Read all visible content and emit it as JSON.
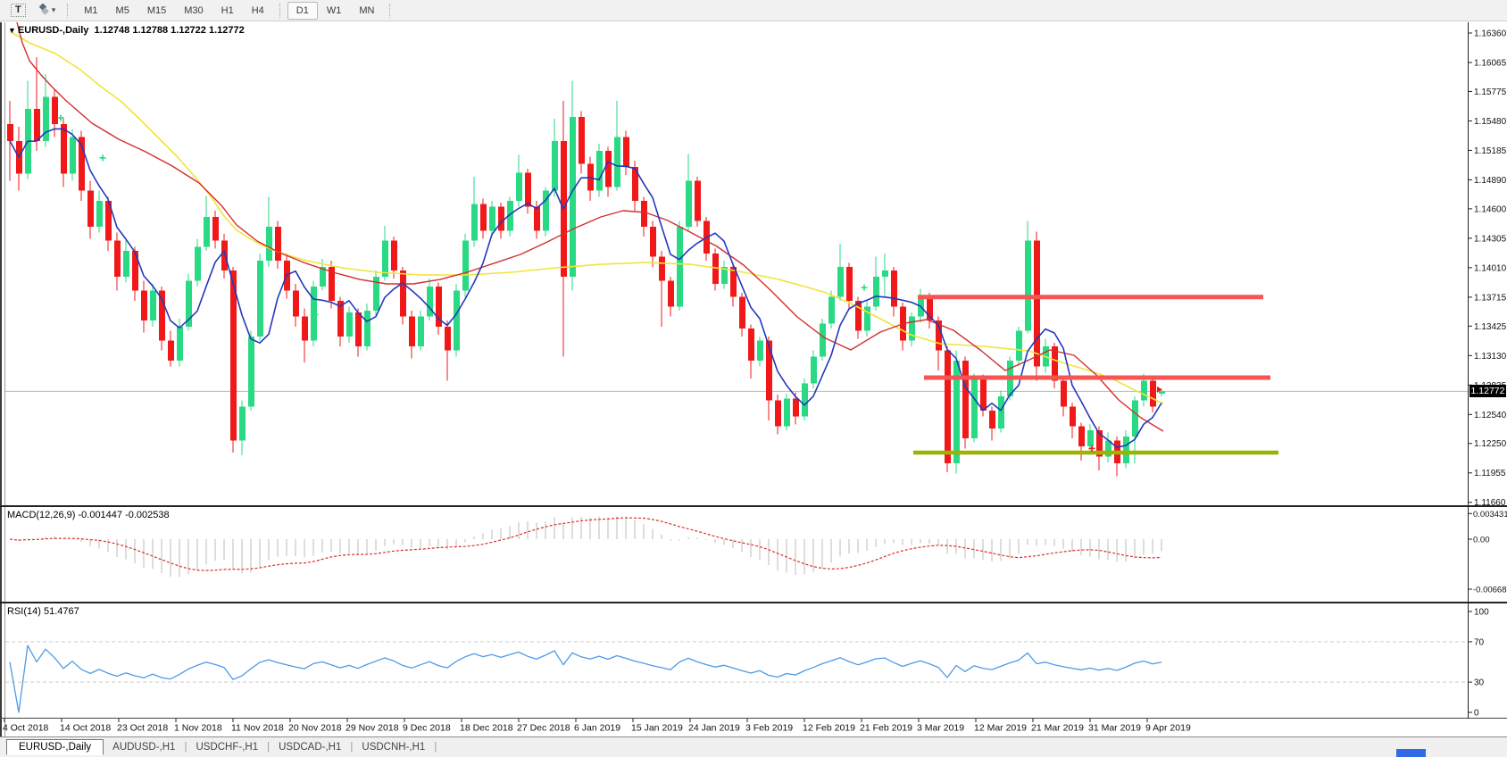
{
  "toolbar": {
    "text_tool_label": "T",
    "icons": [
      "text-tool-icon",
      "objects-icon",
      "dropdown-caret-icon"
    ],
    "timeframe_groups": [
      [
        "M1",
        "M5",
        "M15",
        "M30",
        "H1",
        "H4"
      ],
      [
        "D1",
        "W1",
        "MN"
      ]
    ],
    "active_timeframe": "D1"
  },
  "chart": {
    "title_symbol": "EURUSD-,Daily",
    "title_ohlc": "1.12748 1.12788 1.12722 1.12772",
    "current_price_label": "1.12772"
  },
  "indicators": {
    "macd": {
      "label": "MACD(12,26,9)",
      "values": "-0.001447 -0.002538",
      "axis_ticks": [
        "0.003431",
        "0.00",
        "-0.006686"
      ]
    },
    "rsi": {
      "label": "RSI(14)",
      "value": "51.4767",
      "axis_ticks": [
        "100",
        "70",
        "30",
        "0"
      ],
      "levels": [
        70,
        30
      ]
    }
  },
  "tabs": {
    "active": "EURUSD-,Daily",
    "inactive": [
      "AUDUSD-,H1",
      "USDCHF-,H1",
      "USDCAD-,H1",
      "USDCNH-,H1"
    ],
    "divider": "|"
  },
  "colors": {
    "bull": "#29d984",
    "bear": "#f01818",
    "ma_fast_blue": "#2438bb",
    "ma_medium_red": "#d22f2f",
    "ma_slow_yellow": "#f0e43c",
    "hline_red": "#f75454",
    "hline_olive": "#9db302",
    "rsi_line": "#4d9be6",
    "macd_hist": "#bbbbbb",
    "macd_signal": "#d93025",
    "price_line": "#b6b6b6",
    "level_dash": "#cdcdcd",
    "tag_bg": "#000000",
    "accent_blue": "#2f6be4"
  },
  "chart_data": {
    "type": "candlestick",
    "symbol": "EURUSD-",
    "timeframe": "Daily",
    "title": "EURUSD-,Daily",
    "last_ohlc": {
      "open": 1.12748,
      "high": 1.12788,
      "low": 1.12722,
      "close": 1.12772
    },
    "current_price": 1.12772,
    "y_axis_ticks": [
      "1.16360",
      "1.16065",
      "1.15775",
      "1.15480",
      "1.15185",
      "1.14890",
      "1.14600",
      "1.14305",
      "1.14010",
      "1.13715",
      "1.13425",
      "1.13130",
      "1.12835",
      "1.12540",
      "1.12250",
      "1.11955",
      "1.11660"
    ],
    "x_axis_labels": [
      "4 Oct 2018",
      "14 Oct 2018",
      "23 Oct 2018",
      "1 Nov 2018",
      "11 Nov 2018",
      "20 Nov 2018",
      "29 Nov 2018",
      "9 Dec 2018",
      "18 Dec 2018",
      "27 Dec 2018",
      "6 Jan 2019",
      "15 Jan 2019",
      "24 Jan 2019",
      "3 Feb 2019",
      "12 Feb 2019",
      "21 Feb 2019",
      "3 Mar 2019",
      "12 Mar 2019",
      "21 Mar 2019",
      "31 Mar 2019",
      "9 Apr 2019"
    ],
    "candles_ohlc": [
      [
        1.1545,
        1.1568,
        1.1488,
        1.1528
      ],
      [
        1.1528,
        1.1542,
        1.1478,
        1.1495
      ],
      [
        1.1495,
        1.1588,
        1.149,
        1.156
      ],
      [
        1.156,
        1.1612,
        1.1518,
        1.1528
      ],
      [
        1.1528,
        1.1595,
        1.1522,
        1.1572
      ],
      [
        1.1572,
        1.158,
        1.1532,
        1.1545
      ],
      [
        1.1545,
        1.1552,
        1.1482,
        1.1495
      ],
      [
        1.1495,
        1.154,
        1.1488,
        1.1532
      ],
      [
        1.1532,
        1.1538,
        1.1468,
        1.1478
      ],
      [
        1.1478,
        1.1488,
        1.143,
        1.1442
      ],
      [
        1.1442,
        1.1478,
        1.1436,
        1.1468
      ],
      [
        1.1468,
        1.1472,
        1.1418,
        1.1428
      ],
      [
        1.1428,
        1.1436,
        1.1378,
        1.1392
      ],
      [
        1.1392,
        1.1428,
        1.1386,
        1.1418
      ],
      [
        1.1418,
        1.1422,
        1.1368,
        1.1378
      ],
      [
        1.1378,
        1.1388,
        1.1336,
        1.1348
      ],
      [
        1.1348,
        1.1385,
        1.1342,
        1.1378
      ],
      [
        1.1378,
        1.1382,
        1.1318,
        1.1328
      ],
      [
        1.1328,
        1.1338,
        1.1302,
        1.1308
      ],
      [
        1.1308,
        1.135,
        1.1302,
        1.1342
      ],
      [
        1.1342,
        1.1395,
        1.1338,
        1.1388
      ],
      [
        1.1388,
        1.143,
        1.1382,
        1.1422
      ],
      [
        1.1422,
        1.1473,
        1.1418,
        1.1452
      ],
      [
        1.1452,
        1.1458,
        1.142,
        1.1428
      ],
      [
        1.1428,
        1.1435,
        1.139,
        1.1398
      ],
      [
        1.1398,
        1.1402,
        1.1216,
        1.1228
      ],
      [
        1.1228,
        1.1268,
        1.1213,
        1.1262
      ],
      [
        1.1262,
        1.1338,
        1.1258,
        1.1332
      ],
      [
        1.1332,
        1.1415,
        1.1328,
        1.1408
      ],
      [
        1.1408,
        1.1472,
        1.1402,
        1.1442
      ],
      [
        1.1442,
        1.1448,
        1.14,
        1.1408
      ],
      [
        1.1408,
        1.1415,
        1.137,
        1.1378
      ],
      [
        1.1378,
        1.1385,
        1.1342,
        1.1352
      ],
      [
        1.1352,
        1.136,
        1.1306,
        1.1328
      ],
      [
        1.1328,
        1.1388,
        1.1322,
        1.1382
      ],
      [
        1.1382,
        1.141,
        1.1378,
        1.1402
      ],
      [
        1.1402,
        1.1408,
        1.136,
        1.1368
      ],
      [
        1.1368,
        1.1372,
        1.1322,
        1.1332
      ],
      [
        1.1332,
        1.1362,
        1.1326,
        1.1356
      ],
      [
        1.1356,
        1.136,
        1.1312,
        1.1322
      ],
      [
        1.1322,
        1.1365,
        1.1318,
        1.1358
      ],
      [
        1.1358,
        1.1398,
        1.1352,
        1.1392
      ],
      [
        1.1392,
        1.1443,
        1.1388,
        1.1428
      ],
      [
        1.1428,
        1.1432,
        1.139,
        1.1398
      ],
      [
        1.1398,
        1.1402,
        1.1344,
        1.1352
      ],
      [
        1.1352,
        1.1358,
        1.131,
        1.1322
      ],
      [
        1.1322,
        1.1358,
        1.1318,
        1.1352
      ],
      [
        1.1352,
        1.139,
        1.1348,
        1.1382
      ],
      [
        1.1382,
        1.1386,
        1.1334,
        1.1342
      ],
      [
        1.1342,
        1.1348,
        1.1288,
        1.1318
      ],
      [
        1.1318,
        1.1385,
        1.1312,
        1.1378
      ],
      [
        1.1378,
        1.1435,
        1.1372,
        1.1428
      ],
      [
        1.1428,
        1.1492,
        1.1422,
        1.1465
      ],
      [
        1.1465,
        1.147,
        1.143,
        1.1438
      ],
      [
        1.1438,
        1.1468,
        1.1432,
        1.1462
      ],
      [
        1.1462,
        1.1466,
        1.143,
        1.1438
      ],
      [
        1.1438,
        1.1472,
        1.1432,
        1.1468
      ],
      [
        1.1468,
        1.1514,
        1.1462,
        1.1496
      ],
      [
        1.1496,
        1.15,
        1.1455,
        1.1462
      ],
      [
        1.1462,
        1.1468,
        1.143,
        1.1438
      ],
      [
        1.1438,
        1.1482,
        1.1432,
        1.1478
      ],
      [
        1.1478,
        1.155,
        1.1472,
        1.1528
      ],
      [
        1.1528,
        1.1568,
        1.1312,
        1.1392
      ],
      [
        1.1392,
        1.1588,
        1.1378,
        1.1552
      ],
      [
        1.1552,
        1.1558,
        1.1495,
        1.1505
      ],
      [
        1.1505,
        1.1512,
        1.1468,
        1.1478
      ],
      [
        1.1478,
        1.1525,
        1.1472,
        1.1518
      ],
      [
        1.1518,
        1.1522,
        1.1472,
        1.1482
      ],
      [
        1.1482,
        1.1568,
        1.1478,
        1.1532
      ],
      [
        1.1532,
        1.1538,
        1.1494,
        1.1502
      ],
      [
        1.1502,
        1.1508,
        1.1458,
        1.1468
      ],
      [
        1.1468,
        1.1472,
        1.1432,
        1.1442
      ],
      [
        1.1442,
        1.1448,
        1.1402,
        1.1412
      ],
      [
        1.1412,
        1.1418,
        1.1342,
        1.1388
      ],
      [
        1.1388,
        1.1392,
        1.1352,
        1.1362
      ],
      [
        1.1362,
        1.1448,
        1.1358,
        1.1442
      ],
      [
        1.1442,
        1.1515,
        1.1438,
        1.1488
      ],
      [
        1.1488,
        1.1492,
        1.1442,
        1.1448
      ],
      [
        1.1448,
        1.1452,
        1.1408,
        1.1415
      ],
      [
        1.1415,
        1.142,
        1.1378,
        1.1385
      ],
      [
        1.1385,
        1.1408,
        1.138,
        1.1402
      ],
      [
        1.1402,
        1.1406,
        1.1362,
        1.1372
      ],
      [
        1.1372,
        1.1376,
        1.1332,
        1.134
      ],
      [
        1.134,
        1.1344,
        1.129,
        1.1308
      ],
      [
        1.1308,
        1.1332,
        1.1302,
        1.1328
      ],
      [
        1.1328,
        1.1332,
        1.1248,
        1.1268
      ],
      [
        1.1268,
        1.1274,
        1.1234,
        1.1242
      ],
      [
        1.1242,
        1.1275,
        1.1238,
        1.127
      ],
      [
        1.127,
        1.1276,
        1.1244,
        1.1252
      ],
      [
        1.1252,
        1.129,
        1.1248,
        1.1285
      ],
      [
        1.1285,
        1.1318,
        1.128,
        1.1312
      ],
      [
        1.1312,
        1.135,
        1.1308,
        1.1345
      ],
      [
        1.1345,
        1.1378,
        1.134,
        1.1372
      ],
      [
        1.1372,
        1.1425,
        1.1368,
        1.1402
      ],
      [
        1.1402,
        1.1406,
        1.136,
        1.1368
      ],
      [
        1.1368,
        1.1372,
        1.133,
        1.1338
      ],
      [
        1.1338,
        1.1368,
        1.1332,
        1.1362
      ],
      [
        1.1362,
        1.1412,
        1.1358,
        1.1392
      ],
      [
        1.1392,
        1.1415,
        1.1372,
        1.1398
      ],
      [
        1.1398,
        1.1402,
        1.1352,
        1.1362
      ],
      [
        1.1362,
        1.1366,
        1.1318,
        1.1328
      ],
      [
        1.1328,
        1.1356,
        1.1322,
        1.1352
      ],
      [
        1.1352,
        1.138,
        1.1346,
        1.1372
      ],
      [
        1.1372,
        1.1376,
        1.134,
        1.1348
      ],
      [
        1.1348,
        1.1352,
        1.1298,
        1.1318
      ],
      [
        1.1318,
        1.1322,
        1.1196,
        1.1205
      ],
      [
        1.1205,
        1.1318,
        1.1195,
        1.1308
      ],
      [
        1.1308,
        1.1312,
        1.122,
        1.123
      ],
      [
        1.123,
        1.1295,
        1.1226,
        1.129
      ],
      [
        1.129,
        1.1294,
        1.1252,
        1.1258
      ],
      [
        1.1258,
        1.1262,
        1.1228,
        1.124
      ],
      [
        1.124,
        1.1278,
        1.1236,
        1.1272
      ],
      [
        1.1272,
        1.1312,
        1.1268,
        1.1308
      ],
      [
        1.1308,
        1.1342,
        1.1302,
        1.1338
      ],
      [
        1.1338,
        1.1448,
        1.1335,
        1.1428
      ],
      [
        1.1428,
        1.1437,
        1.1288,
        1.1302
      ],
      [
        1.1302,
        1.133,
        1.1296,
        1.1322
      ],
      [
        1.1322,
        1.1326,
        1.128,
        1.1288
      ],
      [
        1.1288,
        1.1292,
        1.1252,
        1.1262
      ],
      [
        1.1262,
        1.1266,
        1.123,
        1.1242
      ],
      [
        1.1242,
        1.1246,
        1.1208,
        1.1222
      ],
      [
        1.1222,
        1.1244,
        1.1218,
        1.1238
      ],
      [
        1.1238,
        1.1242,
        1.1198,
        1.1212
      ],
      [
        1.1212,
        1.1236,
        1.1206,
        1.1228
      ],
      [
        1.1228,
        1.1232,
        1.1192,
        1.1205
      ],
      [
        1.1205,
        1.1238,
        1.12,
        1.1232
      ],
      [
        1.1232,
        1.1272,
        1.1205,
        1.1268
      ],
      [
        1.1268,
        1.1295,
        1.1262,
        1.1288
      ],
      [
        1.1288,
        1.1292,
        1.1256,
        1.1262
      ],
      [
        1.12748,
        1.12788,
        1.12722,
        1.12772
      ]
    ],
    "overlays": {
      "ma_fast_blue": {
        "type": "sma",
        "period": 5
      },
      "ma_medium_red_points": [
        [
          0.8,
          1.16467
        ],
        [
          1.4,
          1.16262
        ],
        [
          2.2,
          1.16083
        ],
        [
          3.5,
          1.1594
        ],
        [
          4.7,
          1.15824
        ],
        [
          6.2,
          1.1569
        ],
        [
          9.2,
          1.15457
        ],
        [
          12.2,
          1.15296
        ],
        [
          15.2,
          1.15171
        ],
        [
          18.2,
          1.15028
        ],
        [
          21.2,
          1.14858
        ],
        [
          23.7,
          1.14634
        ],
        [
          25.4,
          1.14438
        ],
        [
          27.7,
          1.14277
        ],
        [
          30.2,
          1.14161
        ],
        [
          33.2,
          1.14053
        ],
        [
          36.2,
          1.13964
        ],
        [
          39.2,
          1.13892
        ],
        [
          42.2,
          1.13848
        ],
        [
          45.2,
          1.13848
        ],
        [
          48.2,
          1.13892
        ],
        [
          51.2,
          1.13964
        ],
        [
          54.2,
          1.14053
        ],
        [
          57.2,
          1.14143
        ],
        [
          60.2,
          1.14268
        ],
        [
          63.2,
          1.14402
        ],
        [
          66.2,
          1.14518
        ],
        [
          68.7,
          1.14581
        ],
        [
          71.2,
          1.14563
        ],
        [
          73.7,
          1.14483
        ],
        [
          76.2,
          1.14366
        ],
        [
          79.2,
          1.14223
        ],
        [
          82.2,
          1.14036
        ],
        [
          85.2,
          1.13785
        ],
        [
          88.2,
          1.13517
        ],
        [
          91.2,
          1.13311
        ],
        [
          94.2,
          1.13186
        ],
        [
          97.5,
          1.13365
        ],
        [
          100.2,
          1.13454
        ],
        [
          102.7,
          1.1349
        ],
        [
          105.7,
          1.13383
        ],
        [
          108.7,
          1.13186
        ],
        [
          111.5,
          1.1298
        ],
        [
          114.2,
          1.13088
        ],
        [
          116.5,
          1.13186
        ],
        [
          119.2,
          1.13133
        ],
        [
          121.7,
          1.12936
        ],
        [
          124.2,
          1.12686
        ],
        [
          126.7,
          1.12507
        ],
        [
          129.2,
          1.12373
        ]
      ],
      "ma_slow_yellow_points": [
        [
          0,
          1.16378
        ],
        [
          2.2,
          1.16262
        ],
        [
          5.1,
          1.16154
        ],
        [
          7.9,
          1.15993
        ],
        [
          10.2,
          1.15824
        ],
        [
          12.4,
          1.15681
        ],
        [
          14.4,
          1.15511
        ],
        [
          16.5,
          1.15323
        ],
        [
          18.7,
          1.15126
        ],
        [
          20.9,
          1.14903
        ],
        [
          22.5,
          1.14724
        ],
        [
          24,
          1.14527
        ],
        [
          25.4,
          1.14384
        ],
        [
          27.7,
          1.14259
        ],
        [
          30.2,
          1.14161
        ],
        [
          33.2,
          1.1408
        ],
        [
          37.2,
          1.14009
        ],
        [
          41.2,
          1.13964
        ],
        [
          46.2,
          1.13937
        ],
        [
          51.2,
          1.13937
        ],
        [
          56.2,
          1.13964
        ],
        [
          61.2,
          1.14009
        ],
        [
          66.2,
          1.14044
        ],
        [
          71.2,
          1.14062
        ],
        [
          76.2,
          1.14044
        ],
        [
          81.2,
          1.13982
        ],
        [
          86.2,
          1.13892
        ],
        [
          91.2,
          1.13767
        ],
        [
          94.2,
          1.13651
        ],
        [
          97.7,
          1.1349
        ],
        [
          100.9,
          1.13338
        ],
        [
          104.2,
          1.13249
        ],
        [
          109.2,
          1.13222
        ],
        [
          114.2,
          1.13177
        ],
        [
          117.5,
          1.1307
        ],
        [
          120.9,
          1.1298
        ],
        [
          123.2,
          1.12909
        ],
        [
          126.2,
          1.12775
        ],
        [
          129.2,
          1.12649
        ]
      ],
      "hlines": [
        {
          "name": "resistance-upper",
          "price": 1.13716,
          "from_i": 101.7,
          "to_i": 140.4,
          "color": "#f75454",
          "width": 5
        },
        {
          "name": "resistance-lower",
          "price": 1.12909,
          "from_i": 102.4,
          "to_i": 141.2,
          "color": "#f75454",
          "width": 5
        },
        {
          "name": "support-olive",
          "price": 1.12158,
          "from_i": 101.2,
          "to_i": 142.1,
          "color": "#9db302",
          "width": 4.5
        }
      ],
      "markers": [
        {
          "i": 5.7,
          "price": 1.1551,
          "color": "bull",
          "shape": "plus"
        },
        {
          "i": 10.4,
          "price": 1.1511,
          "color": "bull",
          "shape": "plus"
        },
        {
          "i": 34.2,
          "price": 1.1354,
          "color": "bull",
          "shape": "plus"
        },
        {
          "i": 95.7,
          "price": 1.1381,
          "color": "bull",
          "shape": "plus"
        },
        {
          "i": 121.2,
          "price": 1.122,
          "color": "bear",
          "shape": "plus"
        },
        {
          "i": 128.7,
          "price": 1.1279,
          "color": "bear",
          "shape": "arrow"
        }
      ]
    },
    "sub_indicators": [
      {
        "name": "MACD",
        "params": "12,26,9",
        "current_values": [
          -0.001447,
          -0.002538
        ],
        "axis_ticks": [
          0.003431,
          0,
          -0.006686
        ]
      },
      {
        "name": "RSI",
        "params": "14",
        "current_value": 51.4767,
        "axis_ticks": [
          100,
          70,
          30,
          0
        ],
        "levels": [
          70,
          30
        ]
      }
    ]
  }
}
